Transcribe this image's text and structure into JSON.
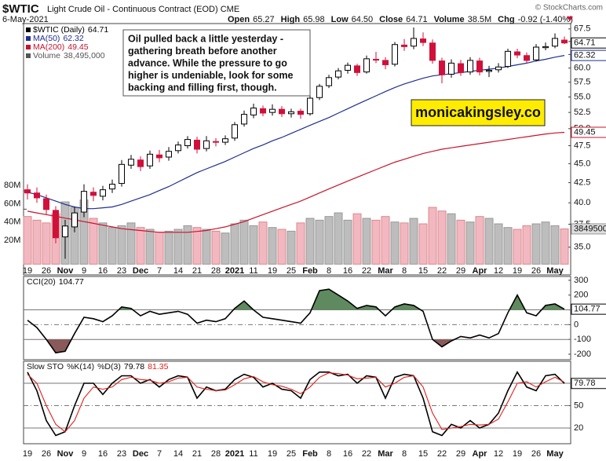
{
  "header": {
    "symbol": "$WTIC",
    "name": "Light Crude Oil - Continuous Contract (EOD)",
    "exchange": "CME",
    "date": "6-May-2021",
    "credit": "© StockCharts.com",
    "quote": [
      {
        "label": "Open",
        "value": "65.27"
      },
      {
        "label": "High",
        "value": "65.98"
      },
      {
        "label": "Low",
        "value": "64.50"
      },
      {
        "label": "Close",
        "value": "64.71"
      },
      {
        "label": "Volume",
        "value": "38.5M"
      },
      {
        "label": "Chg",
        "value": "-0.92 (-1.40%)"
      }
    ]
  },
  "annotation": {
    "lines": [
      "Oil pulled back a little yesterday -",
      "gathering breath before another",
      "advance. While the pressure to go",
      "higher is undeniable, look for some",
      "backing and filling first, though."
    ]
  },
  "watermark": "monicakingsley.co",
  "chart_data": [
    {
      "type": "candlestick",
      "name": "$WTIC (Daily)",
      "log": true,
      "categories": [
        "19",
        null,
        "26",
        null,
        "Nov",
        null,
        "9",
        null,
        "16",
        null,
        "23",
        null,
        "Dec",
        null,
        "7",
        null,
        "14",
        null,
        "21",
        null,
        "28",
        null,
        "2021",
        null,
        "11",
        null,
        "19",
        null,
        "25",
        null,
        "Feb",
        null,
        "8",
        null,
        "16",
        null,
        "22",
        null,
        "Mar",
        null,
        "8",
        null,
        "15",
        null,
        "22",
        null,
        "29",
        null,
        "Apr",
        null,
        "12",
        null,
        "19",
        null,
        "26",
        null,
        "May",
        null
      ],
      "open": [
        41.6,
        41.2,
        40.5,
        39.1,
        36.1,
        37.2,
        38.9,
        41.3,
        40.8,
        41.7,
        42.4,
        44.8,
        45.5,
        44.7,
        46.2,
        45.9,
        46.8,
        47.5,
        48.3,
        47.1,
        48.1,
        48.0,
        48.6,
        50.7,
        52.1,
        53.1,
        52.5,
        53.0,
        52.3,
        52.7,
        52.3,
        54.9,
        56.9,
        58.4,
        59.6,
        60.4,
        59.3,
        61.6,
        61.4,
        60.7,
        64.3,
        64.1,
        65.5,
        64.7,
        61.3,
        58.9,
        60.8,
        59.3,
        61.3,
        59.4,
        59.7,
        60.3,
        63.0,
        62.3,
        61.5,
        63.8,
        64.1,
        65.27
      ],
      "high": [
        42.3,
        41.9,
        41.0,
        39.6,
        38.0,
        39.5,
        42.3,
        41.9,
        42.1,
        42.9,
        45.5,
        46.2,
        46.0,
        46.8,
        46.9,
        47.3,
        48.1,
        48.9,
        48.8,
        48.9,
        48.6,
        49.0,
        51.0,
        52.8,
        53.9,
        53.6,
        53.8,
        53.5,
        53.1,
        53.1,
        55.3,
        57.2,
        58.8,
        60.0,
        61.0,
        60.8,
        62.3,
        63.0,
        62.0,
        64.9,
        65.5,
        67.8,
        66.8,
        65.4,
        61.9,
        61.6,
        61.5,
        62.0,
        61.9,
        60.4,
        60.9,
        63.6,
        63.6,
        62.9,
        64.5,
        64.8,
        66.6,
        65.98
      ],
      "low": [
        40.4,
        40.0,
        38.6,
        35.4,
        33.8,
        36.6,
        38.3,
        40.2,
        40.3,
        41.2,
        42.0,
        44.3,
        44.0,
        44.3,
        45.2,
        45.4,
        46.4,
        47.1,
        46.4,
        46.7,
        47.4,
        47.6,
        48.2,
        50.3,
        51.6,
        51.9,
        52.0,
        51.8,
        51.7,
        51.5,
        52.0,
        54.5,
        56.5,
        58.0,
        59.0,
        58.6,
        59.0,
        60.9,
        59.8,
        60.3,
        63.2,
        63.5,
        64.1,
        60.8,
        57.3,
        58.3,
        58.6,
        58.8,
        58.7,
        58.4,
        59.2,
        60.0,
        61.8,
        60.9,
        61.2,
        63.3,
        63.7,
        64.5
      ],
      "close": [
        41.2,
        40.6,
        39.2,
        36.0,
        37.3,
        38.8,
        41.4,
        40.9,
        41.6,
        42.3,
        44.9,
        45.6,
        44.6,
        46.3,
        45.8,
        46.7,
        47.6,
        48.4,
        47.0,
        48.2,
        48.0,
        48.5,
        50.6,
        52.2,
        53.2,
        52.4,
        53.0,
        52.3,
        52.6,
        52.2,
        54.8,
        56.8,
        58.3,
        59.5,
        60.5,
        59.2,
        61.7,
        61.5,
        60.6,
        64.4,
        64.0,
        65.6,
        64.8,
        61.4,
        58.8,
        60.9,
        59.2,
        61.4,
        59.3,
        59.6,
        60.2,
        63.1,
        62.4,
        61.4,
        63.9,
        64.0,
        65.6,
        64.71
      ],
      "color_up": "#000000",
      "color_down": "#d0103a",
      "ylim": [
        32.2,
        68.6
      ],
      "yticks": [
        {
          "value": 35,
          "label": "35.0"
        },
        {
          "value": 37.5,
          "label": "37.5"
        },
        {
          "value": 40,
          "label": "40.0"
        },
        {
          "value": 42.5,
          "label": "42.5"
        },
        {
          "value": 45,
          "label": "45.0"
        },
        {
          "value": 47.5,
          "label": "47.5"
        },
        {
          "value": 50,
          "label": "50.0"
        },
        {
          "value": 52.5,
          "label": "52.5"
        },
        {
          "value": 55,
          "label": "55.0"
        },
        {
          "value": 57.5,
          "label": "57.5"
        },
        {
          "value": 60,
          "label": "60.0"
        },
        {
          "value": 62.5,
          "label": "62.5"
        },
        {
          "value": 65,
          "label": "65.0"
        },
        {
          "value": 67.5,
          "label": "67.5"
        }
      ],
      "series": [
        {
          "name": "MA(50)",
          "color": "#1f2f8f",
          "values": [
            41.3,
            41.0,
            40.6,
            40.2,
            39.8,
            39.5,
            39.3,
            39.3,
            39.4,
            39.5,
            39.8,
            40.2,
            40.6,
            41.0,
            41.5,
            42.0,
            42.6,
            43.2,
            43.8,
            44.3,
            44.8,
            45.3,
            45.9,
            46.5,
            47.1,
            47.6,
            48.2,
            48.7,
            49.3,
            49.9,
            50.5,
            51.1,
            51.7,
            52.4,
            53.1,
            53.8,
            54.5,
            55.2,
            55.9,
            56.6,
            57.2,
            57.7,
            58.2,
            58.6,
            58.8,
            59.0,
            59.2,
            59.4,
            59.6,
            59.8,
            60.0,
            60.3,
            60.6,
            60.9,
            61.3,
            61.6,
            62.0,
            62.32
          ]
        },
        {
          "name": "MA(200)",
          "color": "#c8142c",
          "values": [
            39.0,
            38.8,
            38.6,
            38.4,
            38.2,
            38.0,
            37.8,
            37.6,
            37.4,
            37.2,
            37.0,
            36.9,
            36.8,
            36.7,
            36.6,
            36.6,
            36.6,
            36.6,
            36.7,
            36.8,
            37.0,
            37.2,
            37.5,
            37.8,
            38.2,
            38.6,
            39.0,
            39.4,
            39.8,
            40.2,
            40.7,
            41.2,
            41.7,
            42.2,
            42.7,
            43.2,
            43.7,
            44.2,
            44.7,
            45.2,
            45.6,
            46.0,
            46.4,
            46.7,
            47.0,
            47.2,
            47.4,
            47.6,
            47.8,
            48.0,
            48.2,
            48.4,
            48.6,
            48.8,
            49.0,
            49.2,
            49.35,
            49.45
          ]
        }
      ],
      "volume": {
        "name": "Volume",
        "legend_value": "38,495,000",
        "color_up": "#bdbdbd",
        "color_down": "#f2b8c2",
        "values": [
          52000000,
          48000000,
          45000000,
          55000000,
          68000000,
          62000000,
          70000000,
          50000000,
          45000000,
          40000000,
          42000000,
          45000000,
          40000000,
          38000000,
          35000000,
          36000000,
          38000000,
          42000000,
          40000000,
          38000000,
          36000000,
          34000000,
          44000000,
          48000000,
          42000000,
          46000000,
          40000000,
          38000000,
          36000000,
          45000000,
          50000000,
          48000000,
          52000000,
          56000000,
          48000000,
          55000000,
          50000000,
          48000000,
          52000000,
          46000000,
          45000000,
          50000000,
          44000000,
          62000000,
          58000000,
          55000000,
          48000000,
          46000000,
          52000000,
          50000000,
          44000000,
          40000000,
          38000000,
          42000000,
          44000000,
          46000000,
          42000000,
          38495000
        ],
        "ylim": [
          -11700000,
          262600000
        ],
        "yticks": [
          {
            "value": 20000000,
            "label": "20M"
          },
          {
            "value": 40000000,
            "label": "40M"
          },
          {
            "value": 60000000,
            "label": "60M"
          },
          {
            "value": 80000000,
            "label": "80M"
          }
        ]
      }
    },
    {
      "type": "line",
      "fill_up_color": "#5f8a5f",
      "fill_down_color": "#8a5a5a",
      "series": [
        {
          "name": "CCI(20)",
          "color": "#000000",
          "values": [
            30,
            -20,
            -100,
            -190,
            -180,
            -60,
            50,
            40,
            20,
            60,
            120,
            110,
            60,
            90,
            70,
            80,
            90,
            70,
            10,
            30,
            20,
            40,
            110,
            160,
            100,
            50,
            40,
            30,
            20,
            10,
            80,
            230,
            240,
            200,
            160,
            110,
            130,
            120,
            60,
            120,
            140,
            130,
            90,
            -100,
            -150,
            -110,
            -80,
            -90,
            -70,
            -90,
            -60,
            80,
            200,
            80,
            60,
            130,
            140,
            104.77
          ]
        }
      ],
      "ylim": [
        -237,
        326
      ],
      "yticks": [
        300,
        200,
        100,
        0,
        -100,
        -200
      ],
      "reference_lines": [
        100,
        0,
        -100
      ]
    },
    {
      "type": "line",
      "title": "Slow STO",
      "series": [
        {
          "name": "%K(14)",
          "color": "#000000",
          "values": [
            95,
            70,
            30,
            10,
            15,
            50,
            80,
            80,
            65,
            80,
            90,
            90,
            80,
            85,
            75,
            85,
            90,
            88,
            60,
            75,
            70,
            72,
            85,
            92,
            88,
            75,
            80,
            72,
            70,
            60,
            85,
            95,
            95,
            90,
            92,
            80,
            90,
            88,
            60,
            88,
            92,
            90,
            60,
            15,
            10,
            25,
            20,
            30,
            20,
            25,
            40,
            70,
            95,
            75,
            70,
            90,
            92,
            79.78
          ]
        },
        {
          "name": "%D(3)",
          "color": "#e0201a",
          "values": [
            92,
            80,
            50,
            25,
            15,
            30,
            60,
            75,
            72,
            75,
            85,
            88,
            85,
            84,
            80,
            82,
            87,
            88,
            75,
            72,
            70,
            71,
            78,
            86,
            89,
            82,
            78,
            76,
            72,
            66,
            75,
            88,
            94,
            93,
            91,
            86,
            87,
            88,
            75,
            80,
            88,
            90,
            75,
            40,
            18,
            20,
            22,
            25,
            24,
            25,
            32,
            55,
            80,
            82,
            75,
            82,
            88,
            81.35
          ]
        }
      ],
      "ylim": [
        -1,
        109.5
      ],
      "yticks": [
        80,
        50,
        20
      ],
      "reference_lines": [
        80,
        50,
        20
      ]
    }
  ]
}
